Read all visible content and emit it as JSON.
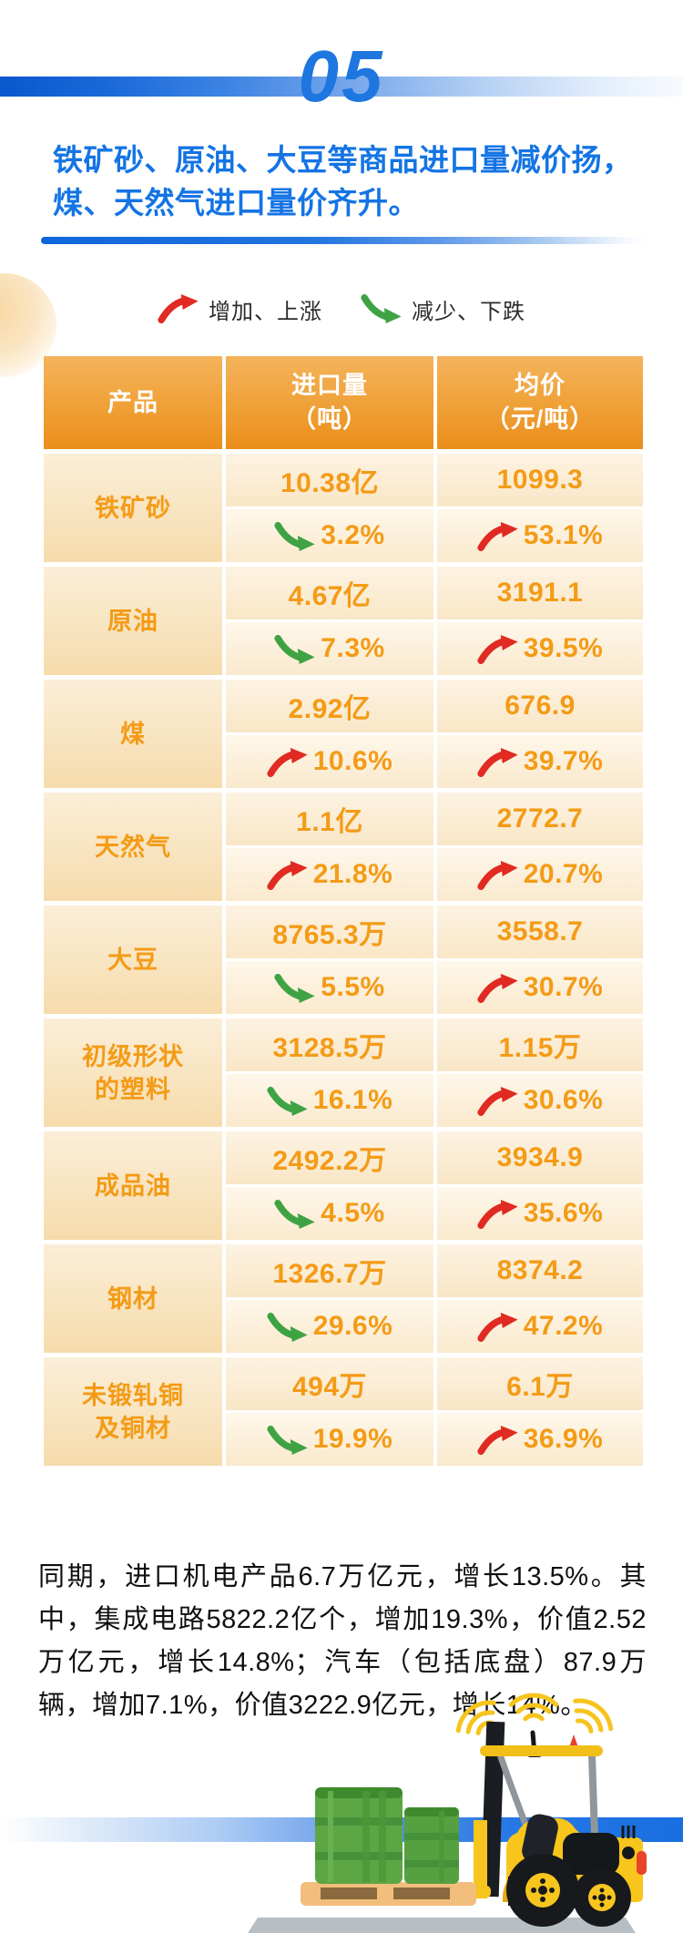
{
  "section": {
    "number": "05"
  },
  "title": {
    "line1": "铁矿砂、原油、大豆等商品进口量减价扬，",
    "line2": "煤、天然气进口量价齐升。"
  },
  "legend": {
    "up_label": "增加、上涨",
    "down_label": "减少、下跌"
  },
  "table": {
    "headers": {
      "product": "产品",
      "volume_line1": "进口量",
      "volume_line2": "（吨）",
      "price_line1": "均价",
      "price_line2": "（元/吨）"
    },
    "rows": [
      {
        "product": "铁矿砂",
        "volume": "10.38亿",
        "volume_dir": "down",
        "volume_change": "3.2%",
        "price": "1099.3",
        "price_dir": "up",
        "price_change": "53.1%"
      },
      {
        "product": "原油",
        "volume": "4.67亿",
        "volume_dir": "down",
        "volume_change": "7.3%",
        "price": "3191.1",
        "price_dir": "up",
        "price_change": "39.5%"
      },
      {
        "product": "煤",
        "volume": "2.92亿",
        "volume_dir": "up",
        "volume_change": "10.6%",
        "price": "676.9",
        "price_dir": "up",
        "price_change": "39.7%"
      },
      {
        "product": "天然气",
        "volume": "1.1亿",
        "volume_dir": "up",
        "volume_change": "21.8%",
        "price": "2772.7",
        "price_dir": "up",
        "price_change": "20.7%"
      },
      {
        "product": "大豆",
        "volume": "8765.3万",
        "volume_dir": "down",
        "volume_change": "5.5%",
        "price": "3558.7",
        "price_dir": "up",
        "price_change": "30.7%"
      },
      {
        "product": "初级形状的塑料",
        "volume": "3128.5万",
        "volume_dir": "down",
        "volume_change": "16.1%",
        "price": "1.15万",
        "price_dir": "up",
        "price_change": "30.6%"
      },
      {
        "product": "成品油",
        "volume": "2492.2万",
        "volume_dir": "down",
        "volume_change": "4.5%",
        "price": "3934.9",
        "price_dir": "up",
        "price_change": "35.6%"
      },
      {
        "product": "钢材",
        "volume": "1326.7万",
        "volume_dir": "down",
        "volume_change": "29.6%",
        "price": "8374.2",
        "price_dir": "up",
        "price_change": "47.2%"
      },
      {
        "product": "未锻轧铜及铜材",
        "volume": "494万",
        "volume_dir": "down",
        "volume_change": "19.9%",
        "price": "6.1万",
        "price_dir": "up",
        "price_change": "36.9%"
      }
    ]
  },
  "footer": {
    "paragraph": "同期，进口机电产品6.7万亿元，增长13.5%。其中，集成电路5822.2亿个，增加19.3%，价值2.52万亿元，增长14.8%；汽车（包括底盘）87.9万辆，增加7.1%，价值3222.9亿元，增长14%。"
  },
  "colors": {
    "accent_blue": "#1474e4",
    "header_orange": "#ee9a2f",
    "text_orange": "#f49b16",
    "up_red": "#e02a22",
    "down_green": "#3fa344"
  },
  "chart_data": {
    "type": "table",
    "title": "铁矿砂、原油、大豆等商品进口量减价扬，煤、天然气进口量价齐升。",
    "legend": {
      "up_arrow": "增加、上涨",
      "down_arrow": "减少、下跌"
    },
    "columns": [
      "产品",
      "进口量（吨）",
      "均价（元/吨）"
    ],
    "rows": [
      {
        "product": "铁矿砂",
        "import_volume": "10.38亿",
        "volume_change_pct": -3.2,
        "avg_price": "1099.3",
        "price_change_pct": 53.1
      },
      {
        "product": "原油",
        "import_volume": "4.67亿",
        "volume_change_pct": -7.3,
        "avg_price": "3191.1",
        "price_change_pct": 39.5
      },
      {
        "product": "煤",
        "import_volume": "2.92亿",
        "volume_change_pct": 10.6,
        "avg_price": "676.9",
        "price_change_pct": 39.7
      },
      {
        "product": "天然气",
        "import_volume": "1.1亿",
        "volume_change_pct": 21.8,
        "avg_price": "2772.7",
        "price_change_pct": 20.7
      },
      {
        "product": "大豆",
        "import_volume": "8765.3万",
        "volume_change_pct": -5.5,
        "avg_price": "3558.7",
        "price_change_pct": 30.7
      },
      {
        "product": "初级形状的塑料",
        "import_volume": "3128.5万",
        "volume_change_pct": -16.1,
        "avg_price": "1.15万",
        "price_change_pct": 30.6
      },
      {
        "product": "成品油",
        "import_volume": "2492.2万",
        "volume_change_pct": -4.5,
        "avg_price": "3934.9",
        "price_change_pct": 35.6
      },
      {
        "product": "钢材",
        "import_volume": "1326.7万",
        "volume_change_pct": -29.6,
        "avg_price": "8374.2",
        "price_change_pct": 47.2
      },
      {
        "product": "未锻轧铜及铜材",
        "import_volume": "494万",
        "volume_change_pct": -19.9,
        "avg_price": "6.1万",
        "price_change_pct": 36.9
      }
    ],
    "note": "同期，进口机电产品6.7万亿元，增长13.5%。其中，集成电路5822.2亿个，增加19.3%，价值2.52万亿元，增长14.8%；汽车（包括底盘）87.9万辆，增加7.1%，价值3222.9亿元，增长14%。"
  }
}
